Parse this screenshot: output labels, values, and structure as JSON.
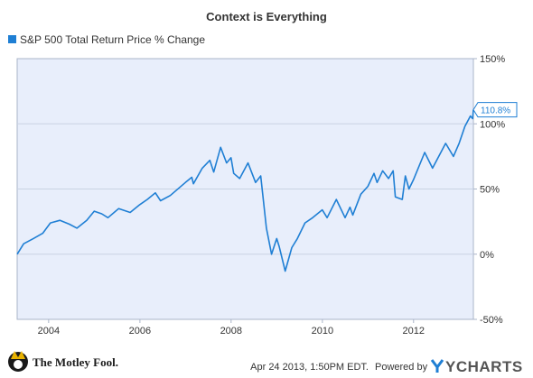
{
  "chart_data": {
    "type": "line",
    "title": "Context is Everything",
    "legend_position": "top-left",
    "grid": "horizontal",
    "x_ticks": [
      "2004",
      "2006",
      "2008",
      "2010",
      "2012"
    ],
    "y_ticks": [
      "150%",
      "100%",
      "50%",
      "0%",
      "-50%"
    ],
    "ylim": [
      -50,
      150
    ],
    "xlim": [
      "2003-04-24",
      "2013-04-24"
    ],
    "series": [
      {
        "name": "S&P 500 Total Return Price % Change",
        "color": "#1f7fd4",
        "last_value_label": "110.8%",
        "points": [
          [
            "2003-04-24",
            0
          ],
          [
            "2003-06-15",
            8
          ],
          [
            "2003-09-01",
            12
          ],
          [
            "2003-11-15",
            16
          ],
          [
            "2004-01-15",
            24
          ],
          [
            "2004-04-01",
            26
          ],
          [
            "2004-06-15",
            23
          ],
          [
            "2004-08-15",
            20
          ],
          [
            "2004-11-01",
            26
          ],
          [
            "2004-12-31",
            33
          ],
          [
            "2005-03-01",
            31
          ],
          [
            "2005-04-20",
            28
          ],
          [
            "2005-07-15",
            35
          ],
          [
            "2005-10-15",
            32
          ],
          [
            "2005-12-31",
            38
          ],
          [
            "2006-03-01",
            42
          ],
          [
            "2006-05-05",
            47
          ],
          [
            "2006-06-15",
            41
          ],
          [
            "2006-09-01",
            45
          ],
          [
            "2006-12-31",
            55
          ],
          [
            "2007-02-20",
            59
          ],
          [
            "2007-03-05",
            54
          ],
          [
            "2007-05-15",
            66
          ],
          [
            "2007-07-15",
            72
          ],
          [
            "2007-08-15",
            63
          ],
          [
            "2007-10-09",
            82
          ],
          [
            "2007-11-26",
            70
          ],
          [
            "2007-12-31",
            74
          ],
          [
            "2008-01-22",
            62
          ],
          [
            "2008-03-10",
            58
          ],
          [
            "2008-05-15",
            70
          ],
          [
            "2008-07-15",
            55
          ],
          [
            "2008-08-25",
            60
          ],
          [
            "2008-10-10",
            20
          ],
          [
            "2008-11-20",
            0
          ],
          [
            "2008-12-31",
            12
          ],
          [
            "2009-01-20",
            6
          ],
          [
            "2009-03-09",
            -13
          ],
          [
            "2009-05-01",
            5
          ],
          [
            "2009-06-15",
            12
          ],
          [
            "2009-08-15",
            24
          ],
          [
            "2009-10-15",
            28
          ],
          [
            "2009-12-31",
            34
          ],
          [
            "2010-02-08",
            28
          ],
          [
            "2010-04-23",
            42
          ],
          [
            "2010-07-02",
            28
          ],
          [
            "2010-08-10",
            36
          ],
          [
            "2010-09-01",
            30
          ],
          [
            "2010-11-05",
            46
          ],
          [
            "2010-12-31",
            52
          ],
          [
            "2011-02-18",
            62
          ],
          [
            "2011-03-15",
            55
          ],
          [
            "2011-04-29",
            64
          ],
          [
            "2011-06-15",
            58
          ],
          [
            "2011-07-22",
            64
          ],
          [
            "2011-08-08",
            44
          ],
          [
            "2011-10-03",
            42
          ],
          [
            "2011-10-27",
            60
          ],
          [
            "2011-11-25",
            50
          ],
          [
            "2011-12-31",
            57
          ],
          [
            "2012-03-30",
            78
          ],
          [
            "2012-06-01",
            66
          ],
          [
            "2012-09-14",
            85
          ],
          [
            "2012-11-15",
            75
          ],
          [
            "2012-12-31",
            85
          ],
          [
            "2013-02-15",
            98
          ],
          [
            "2013-03-31",
            106
          ],
          [
            "2013-04-18",
            104
          ],
          [
            "2013-04-24",
            110.8
          ]
        ]
      }
    ]
  },
  "footer": {
    "logo_text": "The Motley Fool.",
    "timestamp": "Apr 24 2013, 1:50PM EDT.",
    "powered_by": "Powered by",
    "brand": "YCHARTS"
  }
}
